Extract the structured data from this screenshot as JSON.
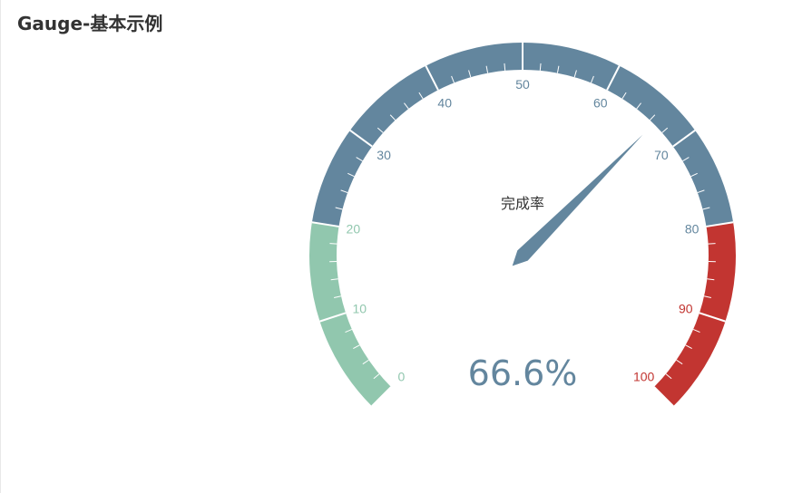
{
  "page": {
    "title": "Gauge-基本示例"
  },
  "chart_data": {
    "type": "gauge",
    "series_name": "完成率",
    "value": 66.6,
    "detail": "66.6%",
    "min": 0,
    "max": 100,
    "start_angle_deg": 225,
    "end_angle_deg": -45,
    "split_number": 10,
    "minor_ticks_per_split": 5,
    "tick_labels": [
      "0",
      "10",
      "20",
      "30",
      "40",
      "50",
      "60",
      "70",
      "80",
      "90",
      "100"
    ],
    "color_bands": [
      {
        "to": 0.2,
        "color": "#91c7ae"
      },
      {
        "to": 0.8,
        "color": "#63869e"
      },
      {
        "to": 1.0,
        "color": "#c23531"
      }
    ],
    "pointer_color": "#63869e",
    "detail_color": "#63869e"
  }
}
